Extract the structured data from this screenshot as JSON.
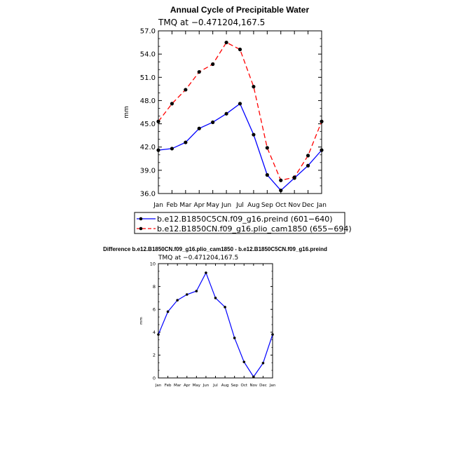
{
  "chart_data": [
    {
      "type": "line",
      "title": "Annual Cycle of Precipitable Water",
      "subtitle": "TMQ at −0.471204,167.5",
      "ylabel": "mm",
      "categories": [
        "Jan",
        "Feb",
        "Mar",
        "Apr",
        "May",
        "Jun",
        "Jul",
        "Aug",
        "Sep",
        "Oct",
        "Nov",
        "Dec",
        "Jan"
      ],
      "ylim": [
        36.0,
        57.0
      ],
      "yticks": [
        "36.0",
        "39.0",
        "42.0",
        "45.0",
        "48.0",
        "51.0",
        "54.0",
        "57.0"
      ],
      "series": [
        {
          "name": "b.e12.B1850C5CN.f09_g16.preind (601−640)",
          "color": "#0000ff",
          "dash": "solid",
          "values": [
            41.6,
            41.8,
            42.6,
            44.4,
            45.2,
            46.3,
            47.6,
            43.6,
            38.4,
            36.4,
            38.0,
            39.6,
            41.6
          ]
        },
        {
          "name": "b.e12.B1850CN.f09_g16.plio_cam1850 (655−694)",
          "color": "#ff0000",
          "dash": "dashed",
          "values": [
            45.3,
            47.6,
            49.4,
            51.7,
            52.7,
            55.5,
            54.6,
            49.8,
            41.9,
            37.7,
            38.1,
            40.9,
            45.3
          ]
        }
      ]
    },
    {
      "type": "line",
      "title": "Difference b.e12.B1850CN.f09_g16.plio_cam1850 - b.e12.B1850C5CN.f09_g16.preind",
      "subtitle": "TMQ at −0.471204,167.5",
      "ylabel": "mm",
      "categories": [
        "Jan",
        "Feb",
        "Mar",
        "Apr",
        "May",
        "Jun",
        "Jul",
        "Aug",
        "Sep",
        "Oct",
        "Nov",
        "Dec",
        "Jan"
      ],
      "ylim": [
        0,
        10
      ],
      "yticks": [
        "0",
        "2",
        "4",
        "6",
        "8",
        "10"
      ],
      "series": [
        {
          "name": "",
          "color": "#0000ff",
          "dash": "solid",
          "values": [
            3.8,
            5.8,
            6.8,
            7.3,
            7.6,
            9.2,
            7.0,
            6.2,
            3.5,
            1.4,
            0.1,
            1.3,
            3.8
          ]
        }
      ]
    }
  ]
}
